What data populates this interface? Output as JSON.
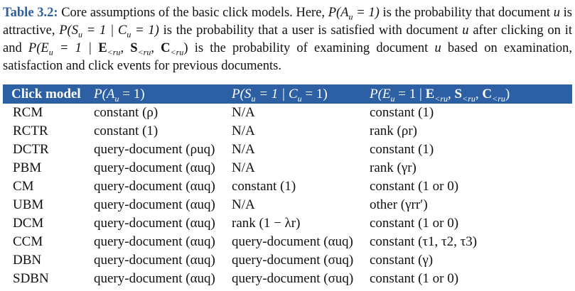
{
  "caption": {
    "label": "Table 3.2:",
    "text": [
      "Core assumptions of the basic click models. Here, ",
      "P(A",
      "u",
      " = 1)",
      " is the probability that document ",
      "u",
      " is attractive, ",
      "P(S",
      "u",
      " = 1 | C",
      "u",
      " = 1)",
      " is the probability that a user is satisfied with document ",
      "u",
      " after clicking on it and ",
      "P(E",
      "u",
      " = 1 | ",
      "E",
      "<r",
      "u",
      ", ",
      "S",
      "<r",
      "u",
      ", ",
      "C",
      "<r",
      "u",
      ")",
      " is the probability of examining document ",
      "u",
      " based on examination, satisfaction and click events for previous documents."
    ]
  },
  "table": {
    "headers": {
      "click_model": "Click model",
      "attractiveness": [
        "P(A",
        "u",
        " = 1)"
      ],
      "satisfaction": [
        "P(S",
        "u",
        " = 1 | C",
        "u",
        " = 1)"
      ],
      "examination": [
        "P(E",
        "u",
        " = 1 | ",
        "E",
        "<r",
        "u",
        ", ",
        "S",
        "<r",
        "u",
        ", ",
        "C",
        "<r",
        "u",
        ")"
      ]
    },
    "rows": [
      {
        "model": "RCM",
        "attr": "constant (ρ)",
        "sat": "N/A",
        "exam": "constant (1)"
      },
      {
        "model": "RCTR",
        "attr": "constant (1)",
        "sat": "N/A",
        "exam": "rank (ρr)"
      },
      {
        "model": "DCTR",
        "attr": "query-document (ρuq)",
        "sat": "N/A",
        "exam": "constant (1)"
      },
      {
        "model": "PBM",
        "attr": "query-document (αuq)",
        "sat": "N/A",
        "exam": "rank (γr)"
      },
      {
        "model": "CM",
        "attr": "query-document (αuq)",
        "sat": "constant (1)",
        "exam": "constant (1 or 0)"
      },
      {
        "model": "UBM",
        "attr": "query-document (αuq)",
        "sat": "N/A",
        "exam": "other (γrr′)"
      },
      {
        "model": "DCM",
        "attr": "query-document (αuq)",
        "sat": "rank (1 − λr)",
        "exam": "constant (1 or 0)"
      },
      {
        "model": "CCM",
        "attr": "query-document (αuq)",
        "sat": "query-document (αuq)",
        "exam": "constant (τ1, τ2, τ3)"
      },
      {
        "model": "DBN",
        "attr": "query-document (αuq)",
        "sat": "query-document (σuq)",
        "exam": "constant (γ)"
      },
      {
        "model": "SDBN",
        "attr": "query-document (αuq)",
        "sat": "query-document (σuq)",
        "exam": "constant (1 or 0)"
      }
    ]
  },
  "colors": {
    "header_bg": "#2c5fa3",
    "label": "#2c5fa3"
  }
}
